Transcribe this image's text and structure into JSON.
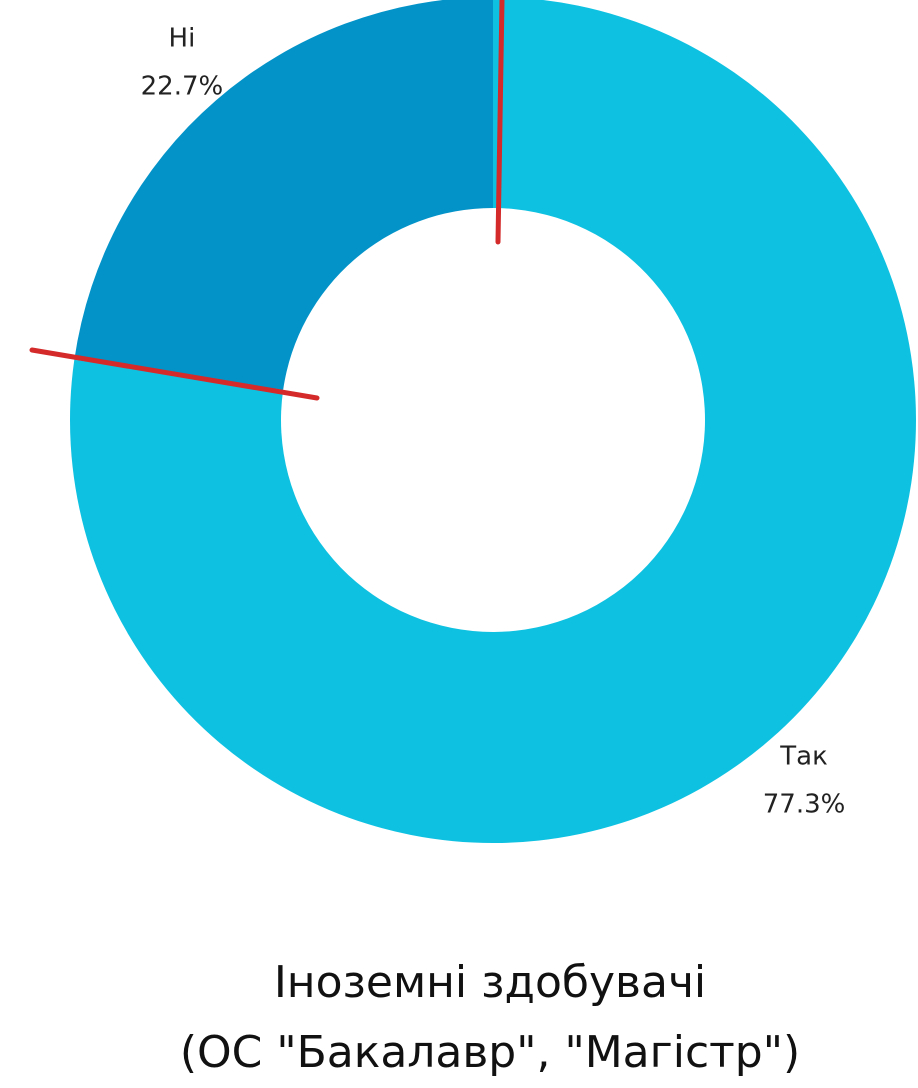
{
  "chart_data": {
    "type": "donut",
    "categories": [
      "Так",
      "Ні"
    ],
    "values": [
      17,
      5
    ],
    "percent_labels": [
      "77.3%",
      "22.7%"
    ],
    "colors": [
      "#0fc1e1",
      "#0393c9"
    ],
    "title": "Іноземні здобувачі",
    "subtitle": "(ОС \"Бакалавр\", \"Магістр\")"
  }
}
